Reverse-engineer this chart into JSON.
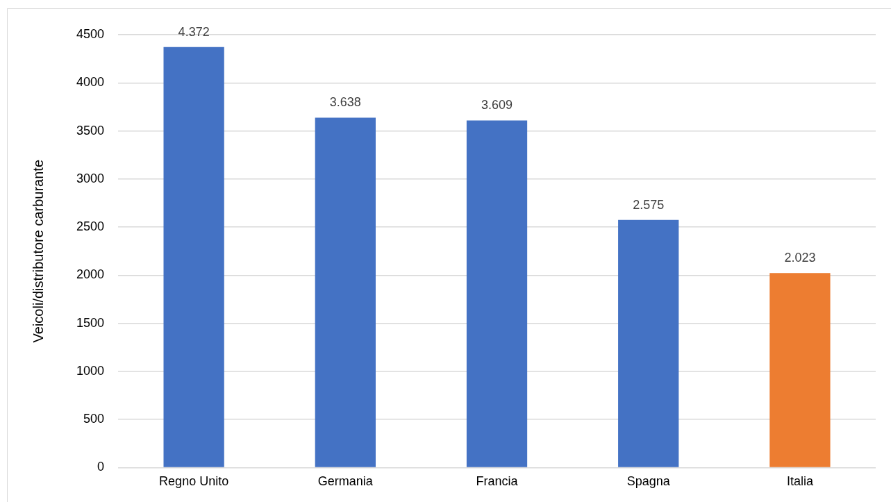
{
  "chart_data": {
    "type": "bar",
    "ylabel": "Veicoli/distributore carburante",
    "categories": [
      "Regno Unito",
      "Germania",
      "Francia",
      "Spagna",
      "Italia"
    ],
    "values": [
      4372,
      3638,
      3609,
      2575,
      2023
    ],
    "colors": [
      "#4472c4",
      "#4472c4",
      "#4472c4",
      "#4472c4",
      "#ed7d31"
    ],
    "value_labels": [
      "4.372",
      "3.638",
      "3.609",
      "2.575",
      "2.023"
    ],
    "ylim": [
      0,
      4500
    ],
    "yticks": [
      0,
      500,
      1000,
      1500,
      2000,
      2500,
      3000,
      3500,
      4000,
      4500
    ],
    "grid": "y"
  }
}
